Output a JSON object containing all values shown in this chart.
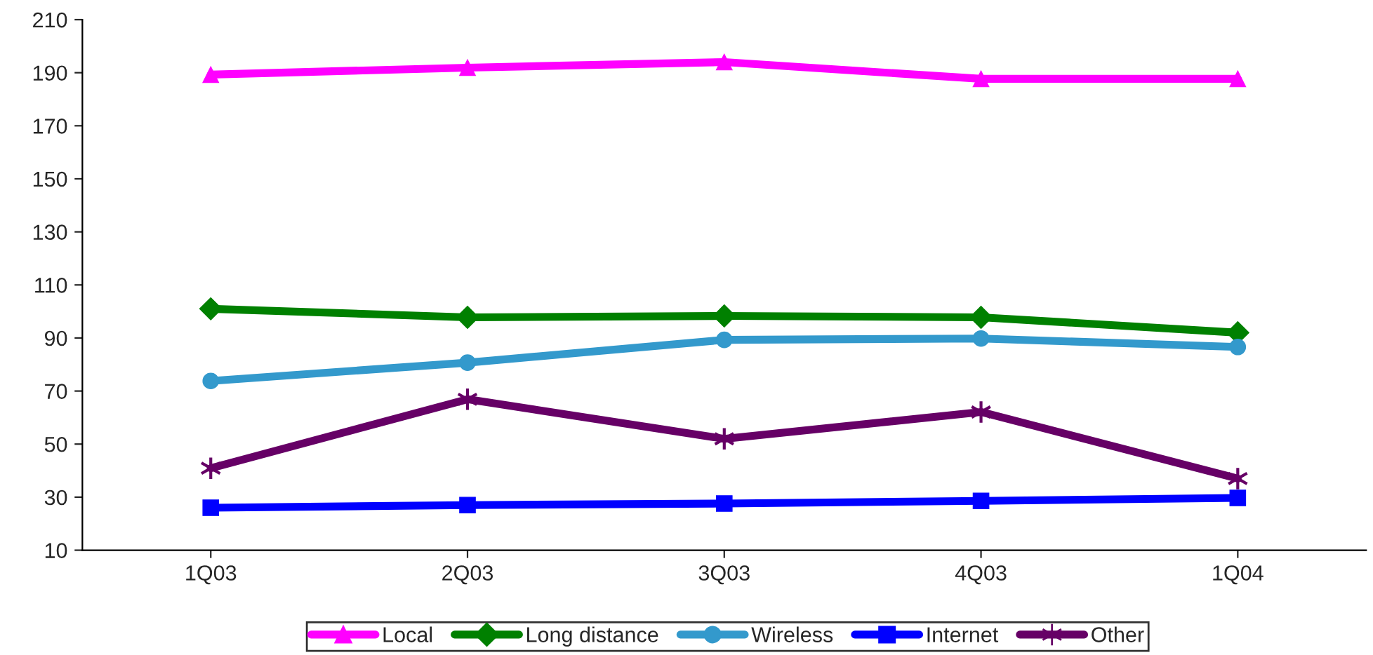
{
  "chart_data": {
    "type": "line",
    "categories": [
      "1Q03",
      "2Q03",
      "3Q03",
      "4Q03",
      "1Q04"
    ],
    "series": [
      {
        "name": "Local",
        "color": "#ff00ff",
        "marker": "triangle",
        "values": [
          189.3,
          191.9,
          194,
          187.7,
          187.7
        ]
      },
      {
        "name": "Long distance",
        "color": "#008000",
        "marker": "diamond",
        "values": [
          101,
          97.8,
          98.3,
          97.8,
          92
        ]
      },
      {
        "name": "Wireless",
        "color": "#3399cc",
        "marker": "circle",
        "values": [
          73.8,
          80.7,
          89.3,
          89.8,
          86.6
        ]
      },
      {
        "name": "Internet",
        "color": "#0000ff",
        "marker": "square",
        "values": [
          26,
          27,
          27.6,
          28.6,
          29.7
        ]
      },
      {
        "name": "Other",
        "color": "#660066",
        "marker": "cross",
        "values": [
          40.9,
          66.9,
          52,
          62.1,
          37
        ]
      }
    ],
    "ylim": [
      10,
      210
    ],
    "yticks": [
      10,
      30,
      50,
      70,
      90,
      110,
      130,
      150,
      170,
      190,
      210
    ],
    "grid": false,
    "legend": "bottom"
  }
}
